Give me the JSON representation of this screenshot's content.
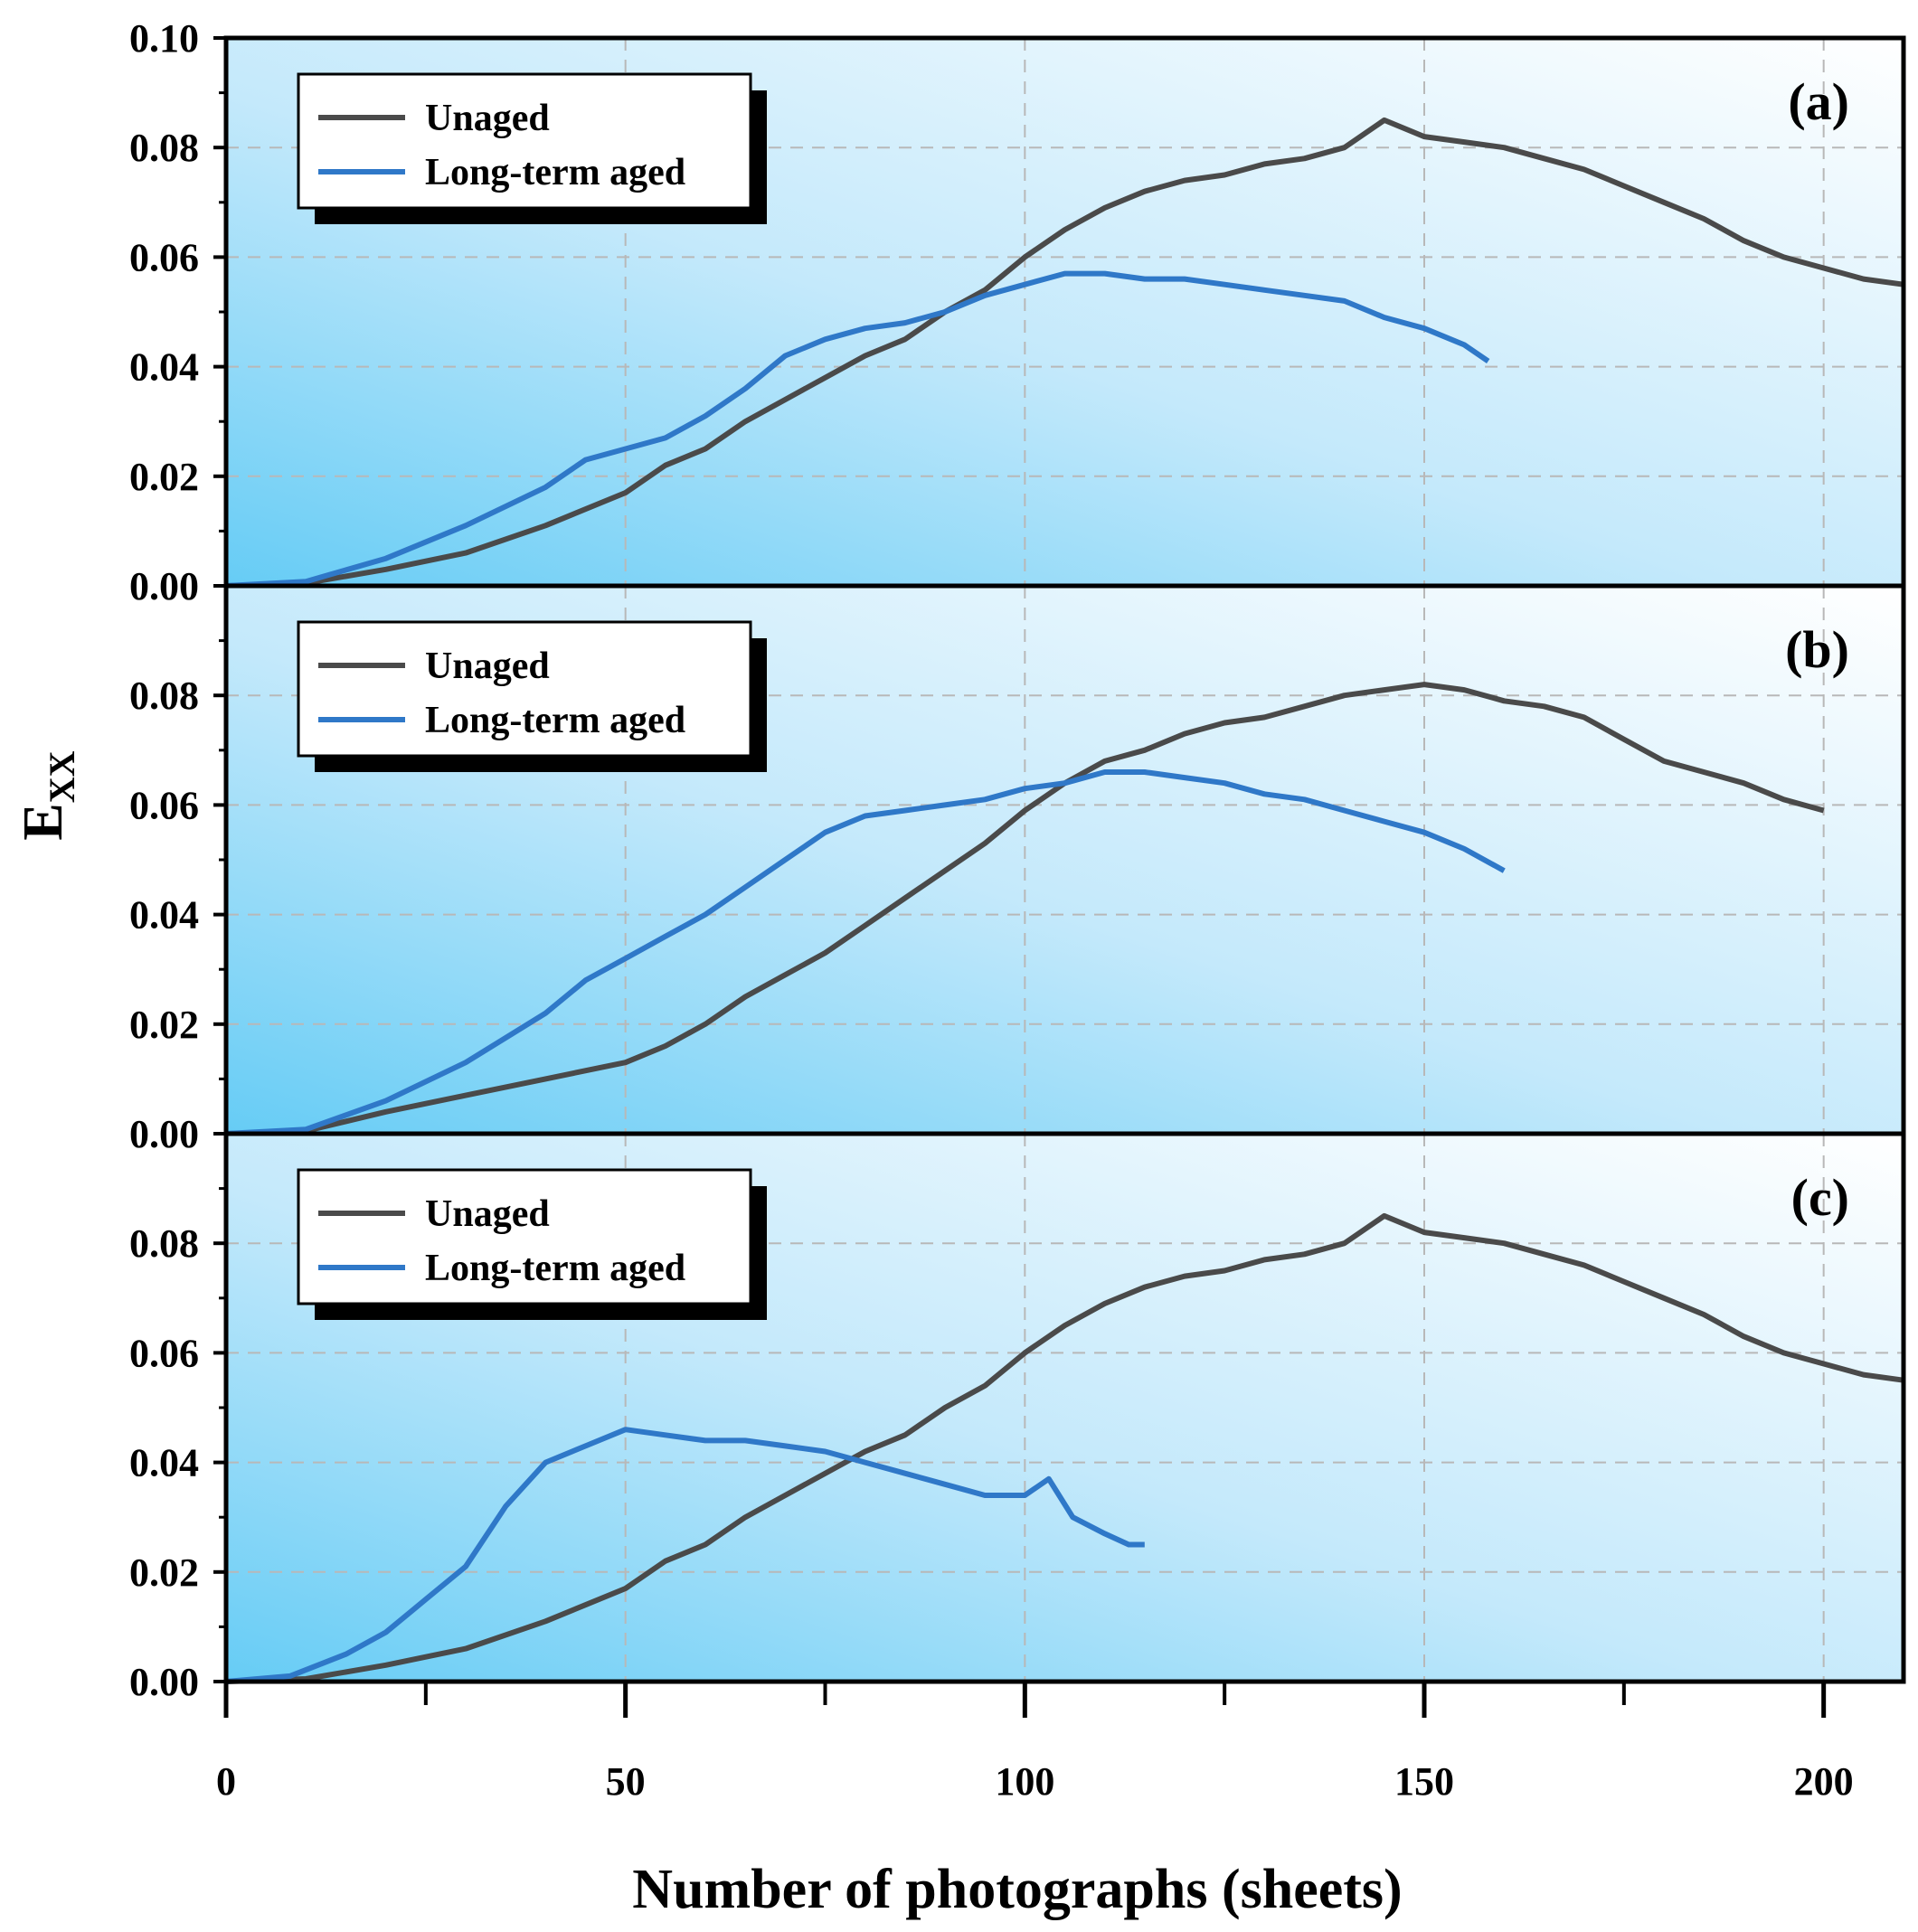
{
  "figure": {
    "xlabel": "Number of photographs (sheets)",
    "ylabel_main": "E",
    "ylabel_sub": "XX",
    "colors": {
      "unaged": "#4a4a4a",
      "aged": "#2f78c8",
      "bg_left": "#66ccf5",
      "bg_right": "#ffffff"
    }
  },
  "chart_data": [
    {
      "type": "line",
      "panel_label": "(a)",
      "xlim": [
        0,
        210
      ],
      "ylim": [
        0,
        0.1
      ],
      "xticks": [
        "0",
        "50",
        "100",
        "150",
        "200"
      ],
      "yticks": [
        "0.00",
        "0.02",
        "0.04",
        "0.06",
        "0.08",
        "0.10"
      ],
      "grid": true,
      "legend_position": "top-left",
      "series": [
        {
          "name": "Unaged",
          "color": "#4a4a4a",
          "points": [
            [
              0,
              0
            ],
            [
              10,
              0.0005
            ],
            [
              20,
              0.003
            ],
            [
              30,
              0.006
            ],
            [
              40,
              0.011
            ],
            [
              50,
              0.017
            ],
            [
              55,
              0.022
            ],
            [
              60,
              0.025
            ],
            [
              65,
              0.03
            ],
            [
              70,
              0.034
            ],
            [
              75,
              0.038
            ],
            [
              80,
              0.042
            ],
            [
              85,
              0.045
            ],
            [
              90,
              0.05
            ],
            [
              95,
              0.054
            ],
            [
              100,
              0.06
            ],
            [
              105,
              0.065
            ],
            [
              110,
              0.069
            ],
            [
              115,
              0.072
            ],
            [
              120,
              0.074
            ],
            [
              125,
              0.075
            ],
            [
              130,
              0.077
            ],
            [
              135,
              0.078
            ],
            [
              140,
              0.08
            ],
            [
              145,
              0.085
            ],
            [
              150,
              0.082
            ],
            [
              155,
              0.081
            ],
            [
              160,
              0.08
            ],
            [
              165,
              0.078
            ],
            [
              170,
              0.076
            ],
            [
              175,
              0.073
            ],
            [
              180,
              0.07
            ],
            [
              185,
              0.067
            ],
            [
              190,
              0.063
            ],
            [
              195,
              0.06
            ],
            [
              200,
              0.058
            ],
            [
              205,
              0.056
            ],
            [
              210,
              0.055
            ]
          ]
        },
        {
          "name": "Long-term aged",
          "color": "#2f78c8",
          "points": [
            [
              0,
              0
            ],
            [
              10,
              0.0008
            ],
            [
              20,
              0.005
            ],
            [
              30,
              0.011
            ],
            [
              40,
              0.018
            ],
            [
              45,
              0.023
            ],
            [
              50,
              0.025
            ],
            [
              55,
              0.027
            ],
            [
              60,
              0.031
            ],
            [
              65,
              0.036
            ],
            [
              70,
              0.042
            ],
            [
              75,
              0.045
            ],
            [
              80,
              0.047
            ],
            [
              85,
              0.048
            ],
            [
              90,
              0.05
            ],
            [
              95,
              0.053
            ],
            [
              100,
              0.055
            ],
            [
              105,
              0.057
            ],
            [
              110,
              0.057
            ],
            [
              115,
              0.056
            ],
            [
              120,
              0.056
            ],
            [
              125,
              0.055
            ],
            [
              130,
              0.054
            ],
            [
              135,
              0.053
            ],
            [
              140,
              0.052
            ],
            [
              145,
              0.049
            ],
            [
              150,
              0.047
            ],
            [
              155,
              0.044
            ],
            [
              158,
              0.041
            ]
          ]
        }
      ]
    },
    {
      "type": "line",
      "panel_label": "(b)",
      "xlim": [
        0,
        210
      ],
      "ylim": [
        0,
        0.1
      ],
      "xticks": [
        "0",
        "50",
        "100",
        "150",
        "200"
      ],
      "yticks": [
        "0.00",
        "0.02",
        "0.04",
        "0.06",
        "0.08"
      ],
      "grid": true,
      "legend_position": "top-left",
      "series": [
        {
          "name": "Unaged",
          "color": "#4a4a4a",
          "points": [
            [
              0,
              0
            ],
            [
              10,
              0.0005
            ],
            [
              20,
              0.004
            ],
            [
              30,
              0.007
            ],
            [
              40,
              0.01
            ],
            [
              50,
              0.013
            ],
            [
              55,
              0.016
            ],
            [
              60,
              0.02
            ],
            [
              65,
              0.025
            ],
            [
              70,
              0.029
            ],
            [
              75,
              0.033
            ],
            [
              80,
              0.038
            ],
            [
              85,
              0.043
            ],
            [
              90,
              0.048
            ],
            [
              95,
              0.053
            ],
            [
              100,
              0.059
            ],
            [
              105,
              0.064
            ],
            [
              110,
              0.068
            ],
            [
              115,
              0.07
            ],
            [
              120,
              0.073
            ],
            [
              125,
              0.075
            ],
            [
              130,
              0.076
            ],
            [
              135,
              0.078
            ],
            [
              140,
              0.08
            ],
            [
              145,
              0.081
            ],
            [
              150,
              0.082
            ],
            [
              155,
              0.081
            ],
            [
              160,
              0.079
            ],
            [
              165,
              0.078
            ],
            [
              170,
              0.076
            ],
            [
              175,
              0.072
            ],
            [
              180,
              0.068
            ],
            [
              185,
              0.066
            ],
            [
              190,
              0.064
            ],
            [
              195,
              0.061
            ],
            [
              200,
              0.059
            ]
          ]
        },
        {
          "name": "Long-term aged",
          "color": "#2f78c8",
          "points": [
            [
              0,
              0
            ],
            [
              10,
              0.0008
            ],
            [
              20,
              0.006
            ],
            [
              30,
              0.013
            ],
            [
              40,
              0.022
            ],
            [
              45,
              0.028
            ],
            [
              50,
              0.032
            ],
            [
              55,
              0.036
            ],
            [
              60,
              0.04
            ],
            [
              65,
              0.045
            ],
            [
              70,
              0.05
            ],
            [
              75,
              0.055
            ],
            [
              80,
              0.058
            ],
            [
              85,
              0.059
            ],
            [
              90,
              0.06
            ],
            [
              95,
              0.061
            ],
            [
              100,
              0.063
            ],
            [
              105,
              0.064
            ],
            [
              110,
              0.066
            ],
            [
              115,
              0.066
            ],
            [
              120,
              0.065
            ],
            [
              125,
              0.064
            ],
            [
              130,
              0.062
            ],
            [
              135,
              0.061
            ],
            [
              140,
              0.059
            ],
            [
              145,
              0.057
            ],
            [
              150,
              0.055
            ],
            [
              155,
              0.052
            ],
            [
              160,
              0.048
            ]
          ]
        }
      ]
    },
    {
      "type": "line",
      "panel_label": "(c)",
      "xlim": [
        0,
        210
      ],
      "ylim": [
        0,
        0.1
      ],
      "xticks": [
        "0",
        "50",
        "100",
        "150",
        "200"
      ],
      "yticks": [
        "0.00",
        "0.02",
        "0.04",
        "0.06",
        "0.08"
      ],
      "grid": true,
      "legend_position": "top-left",
      "series": [
        {
          "name": "Unaged",
          "color": "#4a4a4a",
          "points": [
            [
              0,
              0
            ],
            [
              10,
              0.0005
            ],
            [
              20,
              0.003
            ],
            [
              30,
              0.006
            ],
            [
              40,
              0.011
            ],
            [
              50,
              0.017
            ],
            [
              55,
              0.022
            ],
            [
              60,
              0.025
            ],
            [
              65,
              0.03
            ],
            [
              70,
              0.034
            ],
            [
              75,
              0.038
            ],
            [
              80,
              0.042
            ],
            [
              85,
              0.045
            ],
            [
              90,
              0.05
            ],
            [
              95,
              0.054
            ],
            [
              100,
              0.06
            ],
            [
              105,
              0.065
            ],
            [
              110,
              0.069
            ],
            [
              115,
              0.072
            ],
            [
              120,
              0.074
            ],
            [
              125,
              0.075
            ],
            [
              130,
              0.077
            ],
            [
              135,
              0.078
            ],
            [
              140,
              0.08
            ],
            [
              145,
              0.085
            ],
            [
              150,
              0.082
            ],
            [
              155,
              0.081
            ],
            [
              160,
              0.08
            ],
            [
              165,
              0.078
            ],
            [
              170,
              0.076
            ],
            [
              175,
              0.073
            ],
            [
              180,
              0.07
            ],
            [
              185,
              0.067
            ],
            [
              190,
              0.063
            ],
            [
              195,
              0.06
            ],
            [
              200,
              0.058
            ],
            [
              205,
              0.056
            ],
            [
              210,
              0.055
            ]
          ]
        },
        {
          "name": "Long-term aged",
          "color": "#2f78c8",
          "points": [
            [
              0,
              0
            ],
            [
              8,
              0.001
            ],
            [
              15,
              0.005
            ],
            [
              20,
              0.009
            ],
            [
              25,
              0.015
            ],
            [
              30,
              0.021
            ],
            [
              35,
              0.032
            ],
            [
              40,
              0.04
            ],
            [
              45,
              0.043
            ],
            [
              50,
              0.046
            ],
            [
              55,
              0.045
            ],
            [
              60,
              0.044
            ],
            [
              65,
              0.044
            ],
            [
              70,
              0.043
            ],
            [
              75,
              0.042
            ],
            [
              80,
              0.04
            ],
            [
              85,
              0.038
            ],
            [
              90,
              0.036
            ],
            [
              95,
              0.034
            ],
            [
              100,
              0.034
            ],
            [
              103,
              0.037
            ],
            [
              106,
              0.03
            ],
            [
              110,
              0.027
            ],
            [
              113,
              0.025
            ],
            [
              115,
              0.025
            ]
          ]
        }
      ]
    }
  ]
}
